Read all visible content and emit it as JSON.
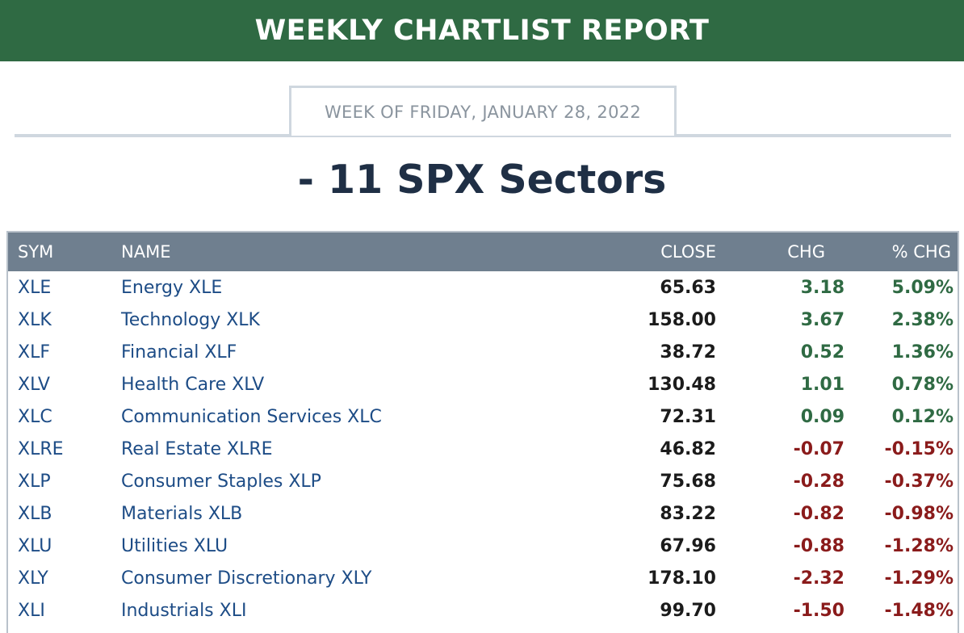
{
  "banner": {
    "title": "WEEKLY CHARTLIST REPORT"
  },
  "week": {
    "label": "WEEK OF FRIDAY, JANUARY 28, 2022"
  },
  "section": {
    "title": "- 11 SPX Sectors"
  },
  "table": {
    "headers": {
      "sym": "SYM",
      "name": "NAME",
      "close": "CLOSE",
      "chg": "CHG",
      "pct_chg": "% CHG"
    },
    "rows": [
      {
        "sym": "XLE",
        "name": "Energy XLE",
        "close": "65.63",
        "chg": "3.18",
        "pct_chg": "5.09%"
      },
      {
        "sym": "XLK",
        "name": "Technology XLK",
        "close": "158.00",
        "chg": "3.67",
        "pct_chg": "2.38%"
      },
      {
        "sym": "XLF",
        "name": "Financial XLF",
        "close": "38.72",
        "chg": "0.52",
        "pct_chg": "1.36%"
      },
      {
        "sym": "XLV",
        "name": "Health Care XLV",
        "close": "130.48",
        "chg": "1.01",
        "pct_chg": "0.78%"
      },
      {
        "sym": "XLC",
        "name": "Communication Services XLC",
        "close": "72.31",
        "chg": "0.09",
        "pct_chg": "0.12%"
      },
      {
        "sym": "XLRE",
        "name": "Real Estate XLRE",
        "close": "46.82",
        "chg": "-0.07",
        "pct_chg": "-0.15%"
      },
      {
        "sym": "XLP",
        "name": "Consumer Staples XLP",
        "close": "75.68",
        "chg": "-0.28",
        "pct_chg": "-0.37%"
      },
      {
        "sym": "XLB",
        "name": "Materials XLB",
        "close": "83.22",
        "chg": "-0.82",
        "pct_chg": "-0.98%"
      },
      {
        "sym": "XLU",
        "name": "Utilities XLU",
        "close": "67.96",
        "chg": "-0.88",
        "pct_chg": "-1.28%"
      },
      {
        "sym": "XLY",
        "name": "Consumer Discretionary XLY",
        "close": "178.10",
        "chg": "-2.32",
        "pct_chg": "-1.29%"
      },
      {
        "sym": "XLI",
        "name": "Industrials XLI",
        "close": "99.70",
        "chg": "-1.50",
        "pct_chg": "-1.48%"
      }
    ]
  },
  "colors": {
    "banner_bg": "#2f6a43",
    "positive": "#2f6a43",
    "negative": "#8a1b1b",
    "link": "#1d4c86",
    "header_bg": "#6f7f8f"
  }
}
